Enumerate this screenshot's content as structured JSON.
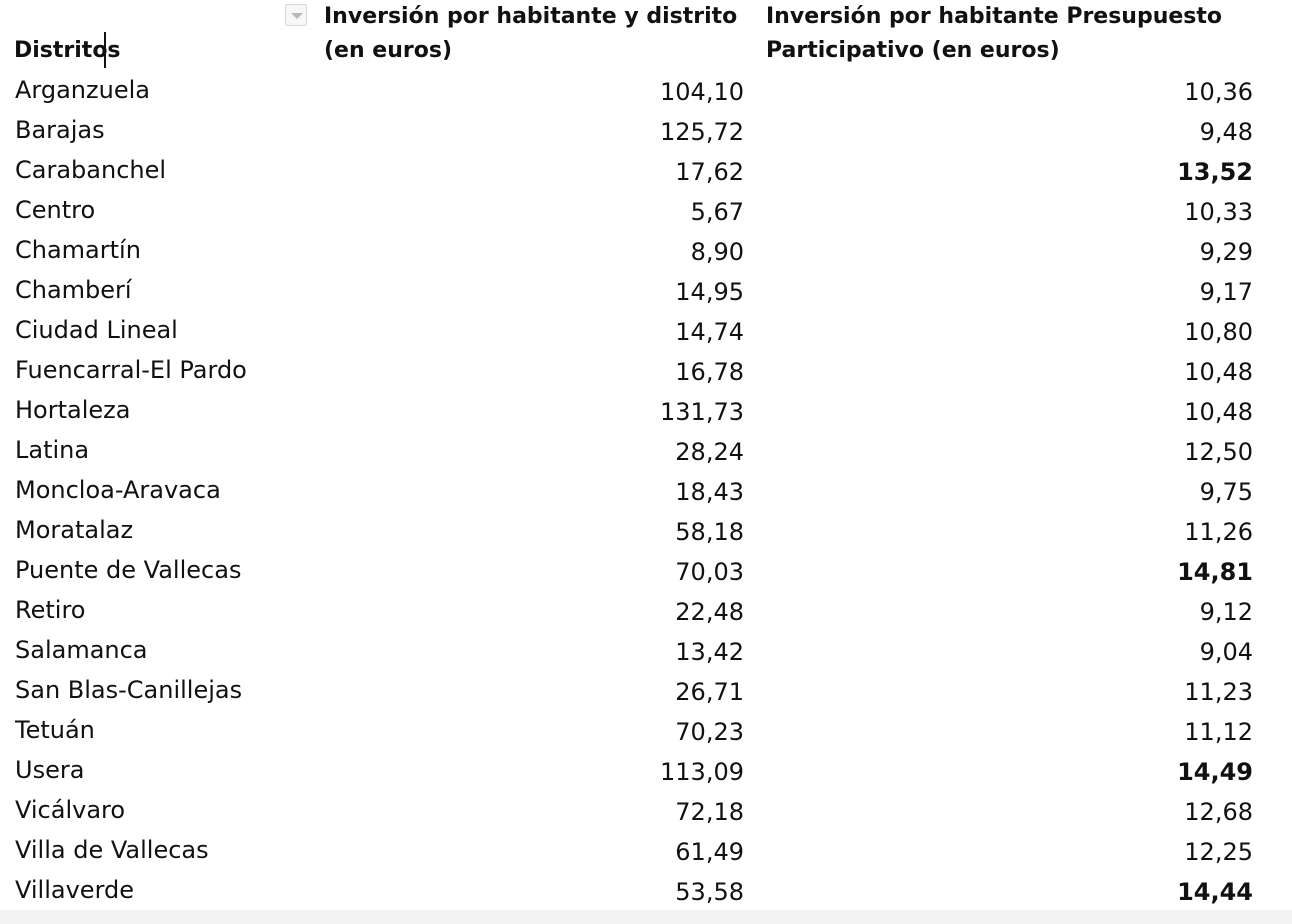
{
  "table": {
    "headers": {
      "district": "Distritos",
      "investment_line1": "Inversión  por habitante y distrito",
      "investment_line2": "(en euros)",
      "participatory_line1": "Inversión por habitante Presupuesto",
      "participatory_line2": "Participativo (en euros)"
    },
    "rows": [
      {
        "district": "Arganzuela",
        "investment": "104,10",
        "participatory": "10,36",
        "bold": false
      },
      {
        "district": "Barajas",
        "investment": "125,72",
        "participatory": "9,48",
        "bold": false
      },
      {
        "district": "Carabanchel",
        "investment": "17,62",
        "participatory": "13,52",
        "bold": true
      },
      {
        "district": "Centro",
        "investment": "5,67",
        "participatory": "10,33",
        "bold": false
      },
      {
        "district": "Chamartín",
        "investment": "8,90",
        "participatory": "9,29",
        "bold": false
      },
      {
        "district": "Chamberí",
        "investment": "14,95",
        "participatory": "9,17",
        "bold": false
      },
      {
        "district": "Ciudad Lineal",
        "investment": "14,74",
        "participatory": "10,80",
        "bold": false
      },
      {
        "district": "Fuencarral-El Pardo",
        "investment": "16,78",
        "participatory": "10,48",
        "bold": false
      },
      {
        "district": "Hortaleza",
        "investment": "131,73",
        "participatory": "10,48",
        "bold": false
      },
      {
        "district": "Latina",
        "investment": "28,24",
        "participatory": "12,50",
        "bold": false
      },
      {
        "district": "Moncloa-Aravaca",
        "investment": "18,43",
        "participatory": "9,75",
        "bold": false
      },
      {
        "district": "Moratalaz",
        "investment": "58,18",
        "participatory": "11,26",
        "bold": false
      },
      {
        "district": "Puente de Vallecas",
        "investment": "70,03",
        "participatory": "14,81",
        "bold": true
      },
      {
        "district": "Retiro",
        "investment": "22,48",
        "participatory": "9,12",
        "bold": false
      },
      {
        "district": "Salamanca",
        "investment": "13,42",
        "participatory": "9,04",
        "bold": false
      },
      {
        "district": "San Blas-Canillejas",
        "investment": "26,71",
        "participatory": "11,23",
        "bold": false
      },
      {
        "district": "Tetuán",
        "investment": "70,23",
        "participatory": "11,12",
        "bold": false
      },
      {
        "district": "Usera",
        "investment": "113,09",
        "participatory": "14,49",
        "bold": true
      },
      {
        "district": "Vicálvaro",
        "investment": "72,18",
        "participatory": "12,68",
        "bold": false
      },
      {
        "district": "Villa de Vallecas",
        "investment": "61,49",
        "participatory": "12,25",
        "bold": false
      },
      {
        "district": "Villaverde",
        "investment": "53,58",
        "participatory": "14,44",
        "bold": true
      }
    ]
  },
  "icons": {
    "filter": "filter-dropdown-icon"
  }
}
